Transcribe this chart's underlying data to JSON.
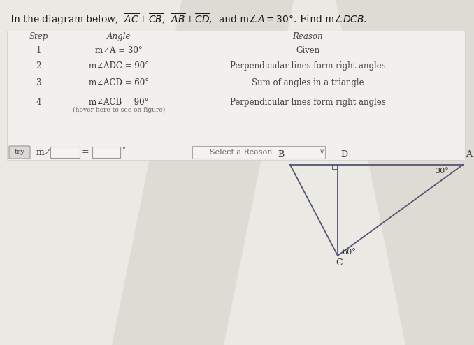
{
  "bg_color": "#ebe9e4",
  "table_bg": "#f0eeea",
  "title_text": "In the diagram below,  $\\overline{AC} \\perp \\overline{CB}$,  $\\overline{AB} \\perp \\overline{CD}$,  and m$\\angle A = 30°$. Find m$\\angle DCB$.",
  "steps": [
    {
      "step": "1",
      "angle": "m∠A = 30°",
      "reason": "Given"
    },
    {
      "step": "2",
      "angle": "m∠ADC = 90°",
      "reason": "Perpendicular lines form right angles"
    },
    {
      "step": "3",
      "angle": "m∠ACD = 60°",
      "reason": "Sum of angles in a triangle"
    },
    {
      "step": "4",
      "angle": "m∠ACB = 90°",
      "angle2": "(hover here to see on figure)",
      "reason": "Perpendicular lines form right angles"
    }
  ],
  "line_color": "#555570",
  "label_color": "#333333",
  "shade_color": "#d4d0ca",
  "geo_A": [
    0.97,
    0.54
  ],
  "geo_B": [
    0.38,
    0.51
  ],
  "geo_C": [
    0.44,
    0.86
  ],
  "geo_D": [
    0.44,
    0.51
  ]
}
